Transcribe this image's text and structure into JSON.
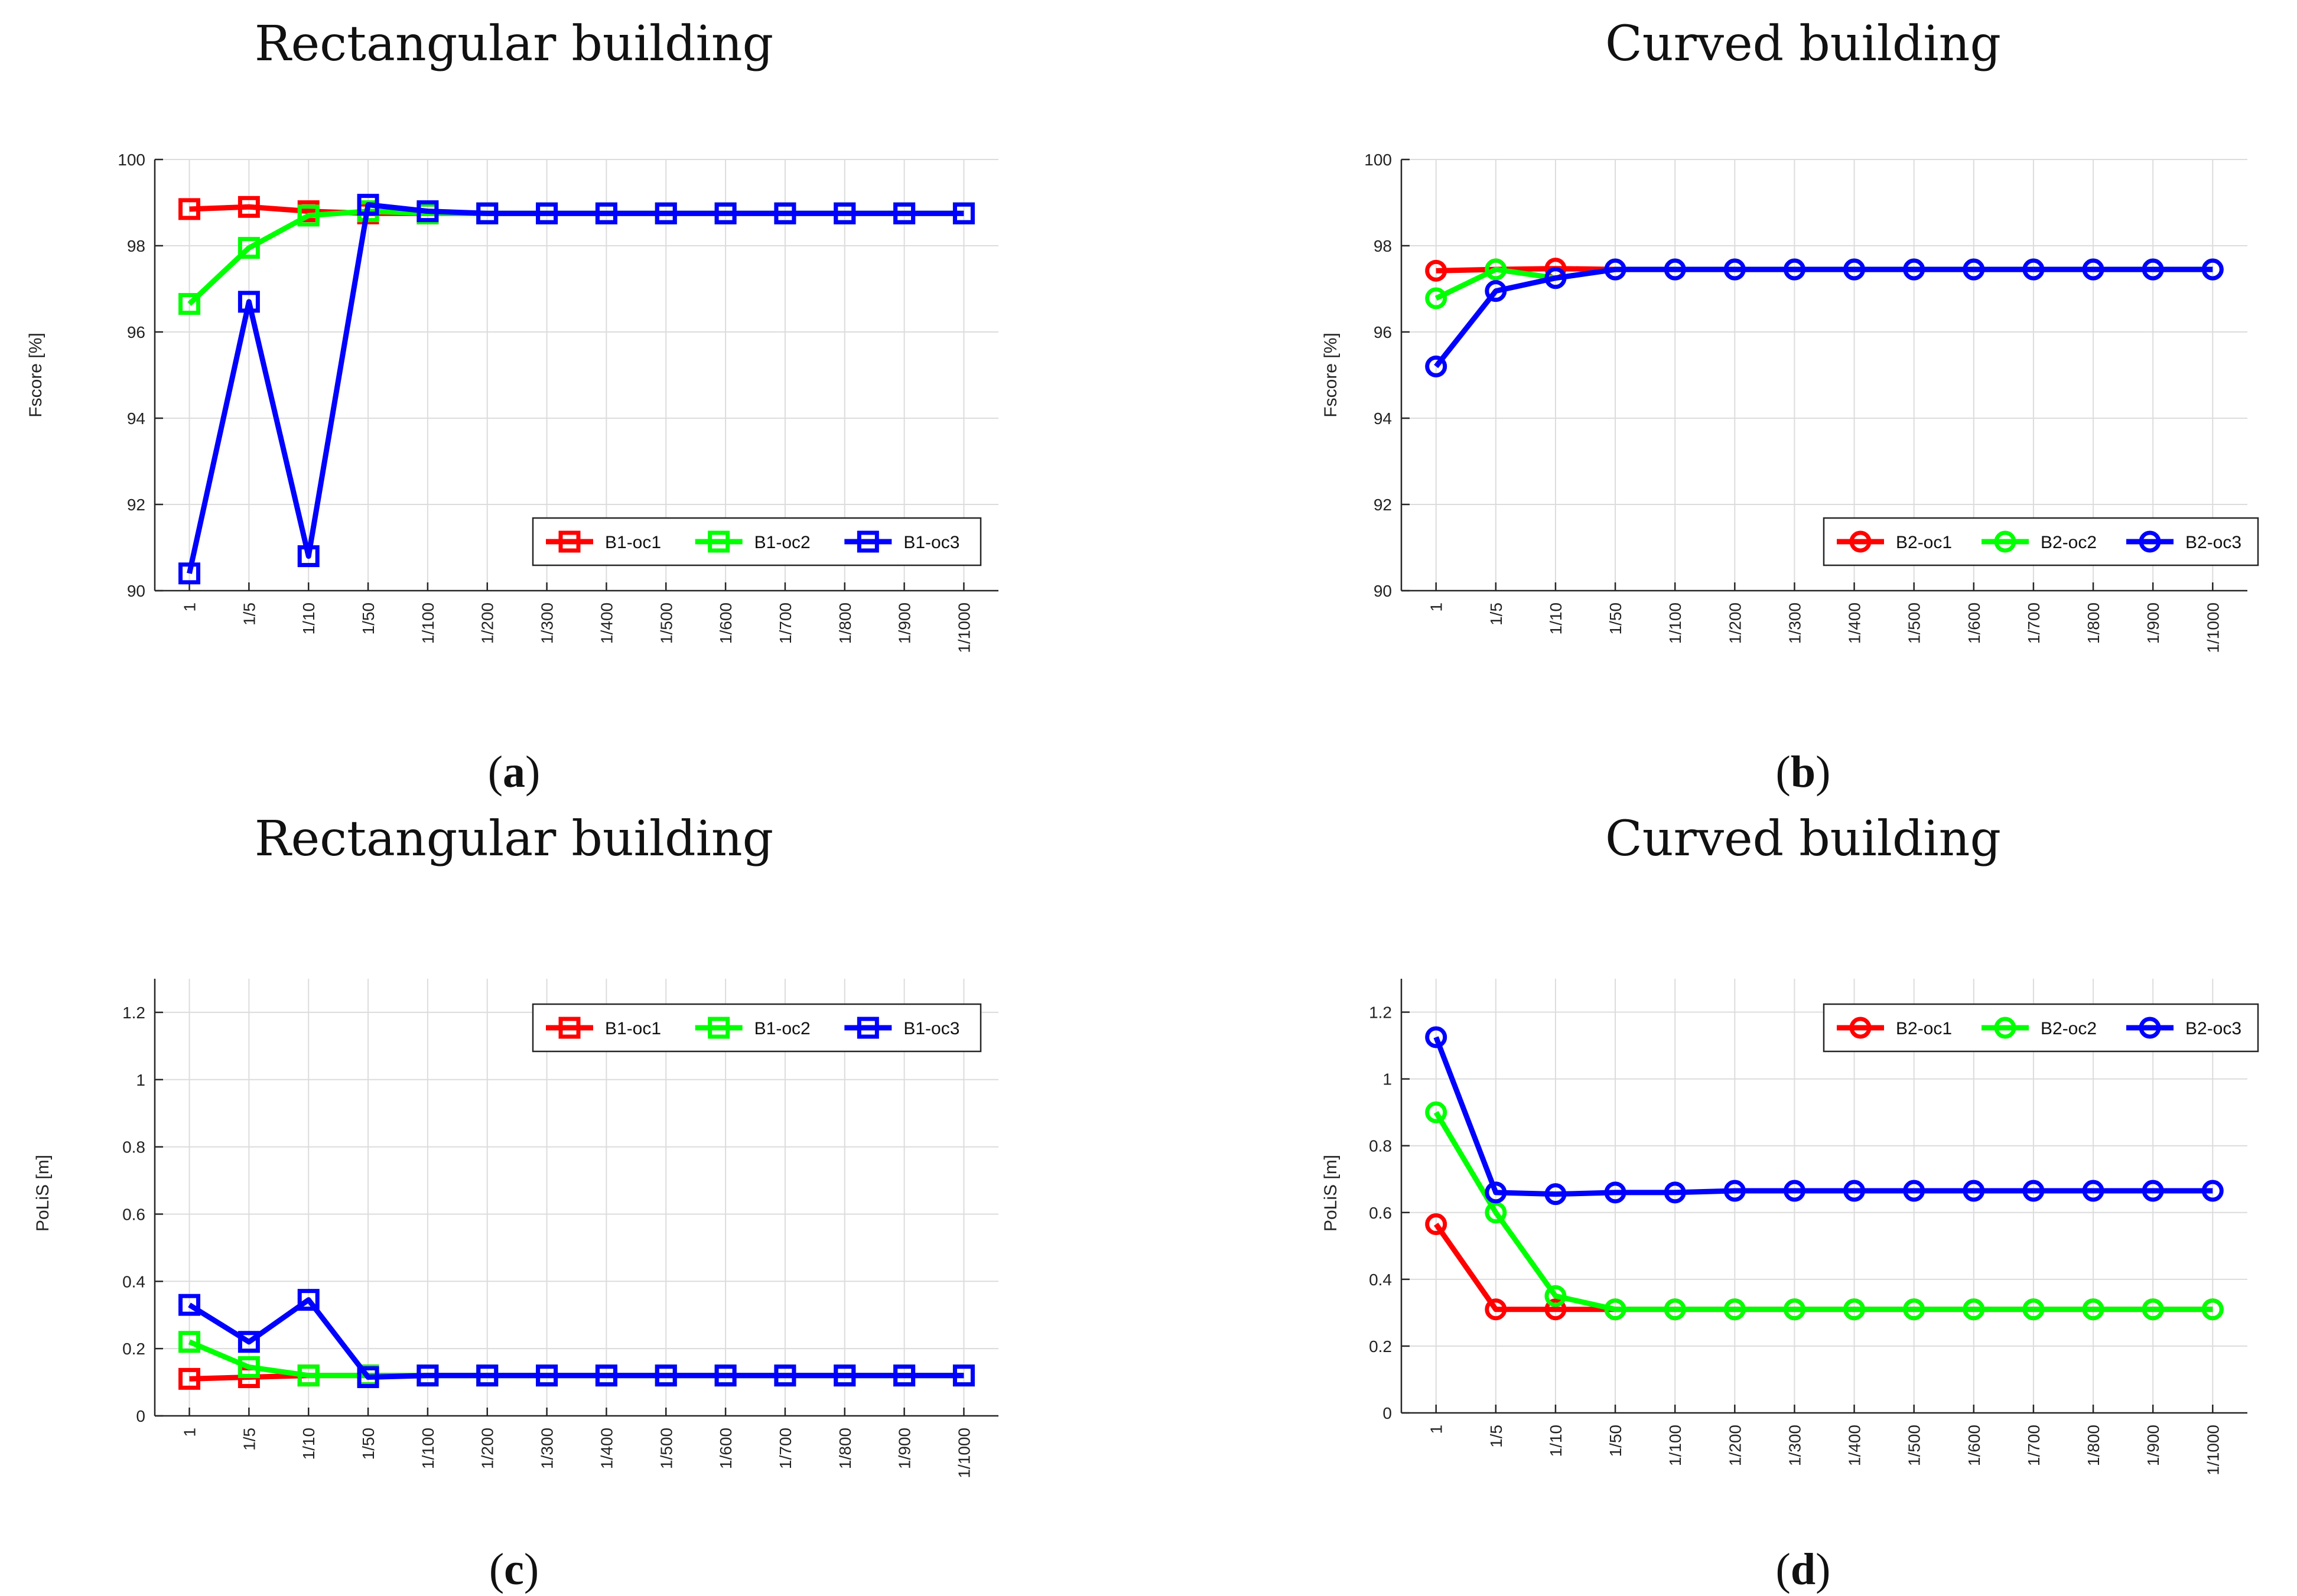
{
  "chart_data": [
    {
      "id": "a",
      "type": "line",
      "title": "Rectangular building",
      "caption_letter": "a",
      "xlabel": "",
      "ylabel": "Fscore [%]",
      "categories": [
        "1",
        "1/5",
        "1/10",
        "1/50",
        "1/100",
        "1/200",
        "1/300",
        "1/400",
        "1/500",
        "1/600",
        "1/700",
        "1/800",
        "1/900",
        "1/1000"
      ],
      "ylim": [
        90,
        100
      ],
      "yticks": [
        90,
        92,
        94,
        96,
        98,
        100
      ],
      "ytick_labels": [
        "90",
        "92",
        "94",
        "96",
        "98",
        "100"
      ],
      "grid": true,
      "marker": "square",
      "legend_position": "bottom-right",
      "series": [
        {
          "name": "B1-oc1",
          "color": "#ff0000",
          "values": [
            98.85,
            98.9,
            98.8,
            98.75,
            98.75,
            98.75,
            98.75,
            98.75,
            98.75,
            98.75,
            98.75,
            98.75,
            98.75,
            98.75
          ]
        },
        {
          "name": "B1-oc2",
          "color": "#00ff00",
          "values": [
            96.65,
            97.95,
            98.7,
            98.8,
            98.75,
            98.75,
            98.75,
            98.75,
            98.75,
            98.75,
            98.75,
            98.75,
            98.75,
            98.75
          ]
        },
        {
          "name": "B1-oc3",
          "color": "#0000ff",
          "values": [
            90.4,
            96.7,
            90.8,
            98.95,
            98.8,
            98.75,
            98.75,
            98.75,
            98.75,
            98.75,
            98.75,
            98.75,
            98.75,
            98.75
          ]
        }
      ]
    },
    {
      "id": "b",
      "type": "line",
      "title": "Curved building",
      "caption_letter": "b",
      "xlabel": "",
      "ylabel": "Fscore [%]",
      "categories": [
        "1",
        "1/5",
        "1/10",
        "1/50",
        "1/100",
        "1/200",
        "1/300",
        "1/400",
        "1/500",
        "1/600",
        "1/700",
        "1/800",
        "1/900",
        "1/1000"
      ],
      "ylim": [
        90,
        100
      ],
      "yticks": [
        90,
        92,
        94,
        96,
        98,
        100
      ],
      "ytick_labels": [
        "90",
        "92",
        "94",
        "96",
        "98",
        "100"
      ],
      "grid": true,
      "marker": "circle",
      "legend_position": "bottom-right",
      "series": [
        {
          "name": "B2-oc1",
          "color": "#ff0000",
          "values": [
            97.42,
            97.45,
            97.47,
            97.45,
            97.45,
            97.45,
            97.45,
            97.45,
            97.45,
            97.45,
            97.45,
            97.45,
            97.45,
            97.45
          ]
        },
        {
          "name": "B2-oc2",
          "color": "#00ff00",
          "values": [
            96.78,
            97.45,
            97.25,
            97.45,
            97.45,
            97.45,
            97.45,
            97.45,
            97.45,
            97.45,
            97.45,
            97.45,
            97.45,
            97.45
          ]
        },
        {
          "name": "B2-oc3",
          "color": "#0000ff",
          "values": [
            95.2,
            96.95,
            97.25,
            97.45,
            97.45,
            97.45,
            97.45,
            97.45,
            97.45,
            97.45,
            97.45,
            97.45,
            97.45,
            97.45
          ]
        }
      ]
    },
    {
      "id": "c",
      "type": "line",
      "title": "Rectangular building",
      "caption_letter": "c",
      "xlabel": "",
      "ylabel": "PoLiS [m]",
      "categories": [
        "1",
        "1/5",
        "1/10",
        "1/50",
        "1/100",
        "1/200",
        "1/300",
        "1/400",
        "1/500",
        "1/600",
        "1/700",
        "1/800",
        "1/900",
        "1/1000"
      ],
      "ylim": [
        0,
        1.3
      ],
      "yticks": [
        0,
        0.2,
        0.4,
        0.6,
        0.8,
        1,
        1.2
      ],
      "ytick_labels": [
        "0",
        "0.2",
        "0.4",
        "0.6",
        "0.8",
        "1",
        "1.2"
      ],
      "grid": true,
      "marker": "square",
      "legend_position": "top-right",
      "series": [
        {
          "name": "B1-oc1",
          "color": "#ff0000",
          "values": [
            0.11,
            0.115,
            0.12,
            0.12,
            0.12,
            0.12,
            0.12,
            0.12,
            0.12,
            0.12,
            0.12,
            0.12,
            0.12,
            0.12
          ]
        },
        {
          "name": "B1-oc2",
          "color": "#00ff00",
          "values": [
            0.22,
            0.145,
            0.12,
            0.12,
            0.12,
            0.12,
            0.12,
            0.12,
            0.12,
            0.12,
            0.12,
            0.12,
            0.12,
            0.12
          ]
        },
        {
          "name": "B1-oc3",
          "color": "#0000ff",
          "values": [
            0.33,
            0.22,
            0.345,
            0.115,
            0.12,
            0.12,
            0.12,
            0.12,
            0.12,
            0.12,
            0.12,
            0.12,
            0.12,
            0.12
          ]
        }
      ]
    },
    {
      "id": "d",
      "type": "line",
      "title": "Curved building",
      "caption_letter": "d",
      "xlabel": "",
      "ylabel": "PoLiS [m]",
      "categories": [
        "1",
        "1/5",
        "1/10",
        "1/50",
        "1/100",
        "1/200",
        "1/300",
        "1/400",
        "1/500",
        "1/600",
        "1/700",
        "1/800",
        "1/900",
        "1/1000"
      ],
      "ylim": [
        0,
        1.3
      ],
      "yticks": [
        0,
        0.2,
        0.4,
        0.6,
        0.8,
        1,
        1.2
      ],
      "ytick_labels": [
        "0",
        "0.2",
        "0.4",
        "0.6",
        "0.8",
        "1",
        "1.2"
      ],
      "grid": true,
      "marker": "circle",
      "legend_position": "top-right",
      "series": [
        {
          "name": "B2-oc1",
          "color": "#ff0000",
          "values": [
            0.565,
            0.31,
            0.31,
            0.31,
            0.31,
            0.31,
            0.31,
            0.31,
            0.31,
            0.31,
            0.31,
            0.31,
            0.31,
            0.31
          ]
        },
        {
          "name": "B2-oc2",
          "color": "#00ff00",
          "values": [
            0.9,
            0.6,
            0.35,
            0.31,
            0.31,
            0.31,
            0.31,
            0.31,
            0.31,
            0.31,
            0.31,
            0.31,
            0.31,
            0.31
          ]
        },
        {
          "name": "B2-oc3",
          "color": "#0000ff",
          "values": [
            1.125,
            0.66,
            0.655,
            0.66,
            0.66,
            0.665,
            0.665,
            0.665,
            0.665,
            0.665,
            0.665,
            0.665,
            0.665,
            0.665
          ]
        }
      ]
    }
  ]
}
